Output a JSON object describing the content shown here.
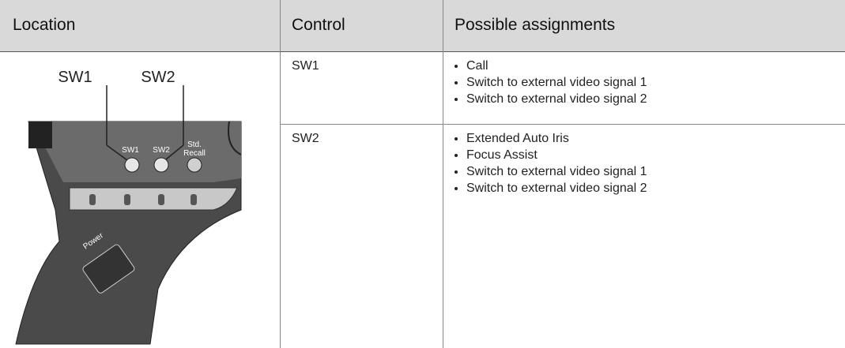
{
  "header": {
    "columns": [
      "Location",
      "Control",
      "Possible assignments"
    ]
  },
  "illustration": {
    "callouts": [
      "SW1",
      "SW2"
    ],
    "button_labels": [
      "SW1",
      "SW2",
      "Std.",
      "Recall"
    ],
    "power_label": "Power"
  },
  "table": {
    "rows": [
      {
        "control": "SW1",
        "assignments": [
          "Call",
          "Switch to external video signal 1",
          "Switch to external video signal 2"
        ]
      },
      {
        "control": "SW2",
        "assignments": [
          "Extended Auto Iris",
          "Focus Assist",
          "Switch to external video signal 1",
          "Switch to external video signal 2"
        ]
      }
    ]
  }
}
